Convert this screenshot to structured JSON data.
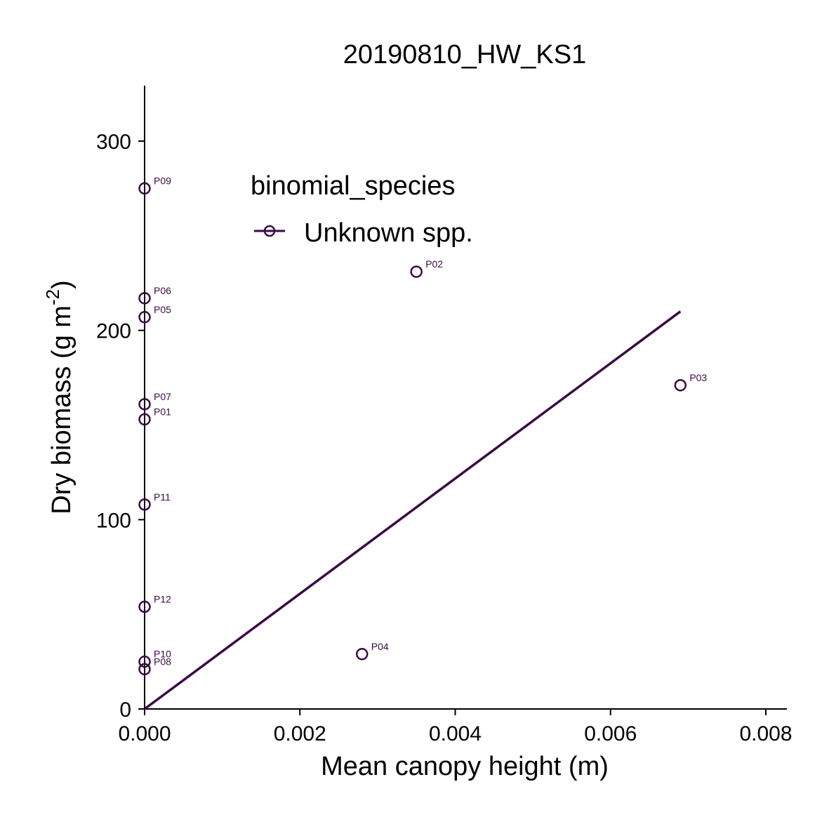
{
  "chart_data": {
    "type": "scatter",
    "title": "20190810_HW_KS1",
    "xlabel": "Mean canopy height (m)",
    "ylabel": "Dry biomass (g m⁻²)",
    "xlim": [
      0,
      0.00825
    ],
    "ylim": [
      0,
      330
    ],
    "xticks": [
      0.0,
      0.002,
      0.004,
      0.006,
      0.008
    ],
    "xtick_labels": [
      "0.000",
      "0.002",
      "0.004",
      "0.006",
      "0.008"
    ],
    "yticks": [
      0,
      100,
      200,
      300
    ],
    "ytick_labels": [
      "0",
      "100",
      "200",
      "300"
    ],
    "grid": false,
    "legend": {
      "title": "binomial_species",
      "placement": "top-left",
      "entries": [
        "Unknown spp."
      ]
    },
    "series": [
      {
        "name": "Unknown spp.",
        "color": "#3b0a45",
        "points": [
          {
            "label": "P01",
            "x": 0.0,
            "y": 153
          },
          {
            "label": "P02",
            "x": 0.0035,
            "y": 231
          },
          {
            "label": "P03",
            "x": 0.0069,
            "y": 171
          },
          {
            "label": "P04",
            "x": 0.0028,
            "y": 29
          },
          {
            "label": "P05",
            "x": 0.0,
            "y": 207
          },
          {
            "label": "P06",
            "x": 0.0,
            "y": 217
          },
          {
            "label": "P07",
            "x": 0.0,
            "y": 161
          },
          {
            "label": "P08",
            "x": 0.0,
            "y": 21
          },
          {
            "label": "P09",
            "x": 0.0,
            "y": 275
          },
          {
            "label": "P10",
            "x": 0.0,
            "y": 25
          },
          {
            "label": "P11",
            "x": 0.0,
            "y": 108
          },
          {
            "label": "P12",
            "x": 0.0,
            "y": 54
          }
        ],
        "fit_line": {
          "x": [
            0.0,
            0.0069
          ],
          "y": [
            0,
            210
          ]
        }
      }
    ]
  }
}
